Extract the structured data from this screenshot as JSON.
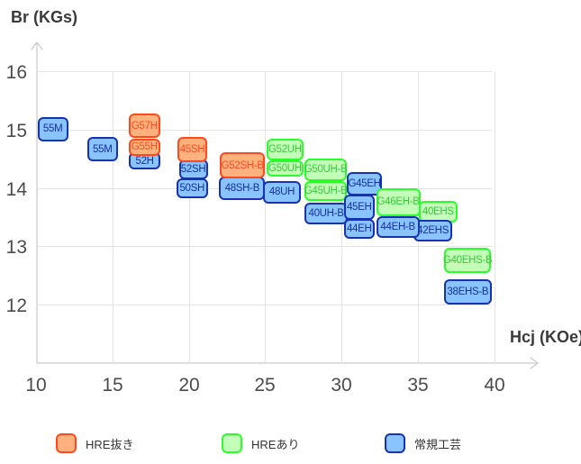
{
  "chart_data": {
    "type": "scatter",
    "subtype": "labeled-range-boxes",
    "title": "",
    "xlabel": "Hcj (KOe)",
    "ylabel": "Br (KGs)",
    "xlim": [
      10,
      42
    ],
    "ylim": [
      11,
      16.5
    ],
    "x_ticks": [
      10,
      15,
      20,
      25,
      30,
      35,
      40
    ],
    "y_ticks": [
      12,
      13,
      14,
      15,
      16
    ],
    "grid": true,
    "legend_position": "bottom",
    "series": [
      {
        "name": "HRE抜き",
        "fill": "#ffb27d",
        "border": "#ff4a21",
        "text": "#ff4a21"
      },
      {
        "name": "HREあり",
        "fill": "#c3ffb9",
        "border": "#2bff2b",
        "text": "#35cc35"
      },
      {
        "name": "常規工芸",
        "fill": "#8ac4ff",
        "border": "#1733b2",
        "text": "#15309f"
      }
    ],
    "items": [
      {
        "label": "55M",
        "group": "常規工芸",
        "hcj": [
          10.1,
          12.1
        ],
        "br": [
          14.8,
          15.22
        ]
      },
      {
        "label": "55M",
        "group": "常規工芸",
        "hcj": [
          13.35,
          15.35
        ],
        "br": [
          14.45,
          14.87
        ]
      },
      {
        "label": "52H",
        "group": "常規工芸",
        "hcj": [
          16.1,
          18.13
        ],
        "br": [
          14.31,
          14.61
        ]
      },
      {
        "label": "G55H",
        "group": "HRE抜き",
        "hcj": [
          16.05,
          18.15
        ],
        "br": [
          14.55,
          14.85
        ]
      },
      {
        "label": "G57H",
        "group": "HRE抜き",
        "hcj": [
          16.05,
          18.15
        ],
        "br": [
          14.85,
          15.27
        ]
      },
      {
        "label": "50SH",
        "group": "常規工芸",
        "hcj": [
          19.2,
          21.25
        ],
        "br": [
          13.82,
          14.17
        ]
      },
      {
        "label": "52SH",
        "group": "常規工芸",
        "hcj": [
          19.35,
          21.25
        ],
        "br": [
          14.14,
          14.49
        ]
      },
      {
        "label": "45SH",
        "group": "HRE抜き",
        "hcj": [
          19.25,
          21.22
        ],
        "br": [
          14.44,
          14.87
        ]
      },
      {
        "label": "48SH-B",
        "group": "常規工芸",
        "hcj": [
          22.0,
          25.0
        ],
        "br": [
          13.79,
          14.19
        ]
      },
      {
        "label": "G52SH-B",
        "group": "HRE抜き",
        "hcj": [
          22.05,
          25.0
        ],
        "br": [
          14.16,
          14.61
        ]
      },
      {
        "label": "48UH",
        "group": "常規工芸",
        "hcj": [
          24.87,
          27.35
        ],
        "br": [
          13.73,
          14.12
        ]
      },
      {
        "label": "G50UH",
        "group": "HREあり",
        "hcj": [
          25.1,
          27.52
        ],
        "br": [
          14.19,
          14.47
        ]
      },
      {
        "label": "G52UH",
        "group": "HREあり",
        "hcj": [
          25.1,
          27.52
        ],
        "br": [
          14.47,
          14.84
        ]
      },
      {
        "label": "G50UH-B",
        "group": "HREあり",
        "hcj": [
          27.57,
          30.38
        ],
        "br": [
          14.12,
          14.5
        ]
      },
      {
        "label": "G45UH-B",
        "group": "HREあり",
        "hcj": [
          27.57,
          30.38
        ],
        "br": [
          13.77,
          14.12
        ]
      },
      {
        "label": "40UH-B",
        "group": "常規工芸",
        "hcj": [
          27.6,
          30.4
        ],
        "br": [
          13.38,
          13.75
        ]
      },
      {
        "label": "45EH",
        "group": "常規工芸",
        "hcj": [
          30.16,
          32.17
        ],
        "br": [
          13.46,
          13.88
        ]
      },
      {
        "label": "44EH",
        "group": "常規工芸",
        "hcj": [
          30.16,
          32.17
        ],
        "br": [
          13.13,
          13.47
        ]
      },
      {
        "label": "G45EH",
        "group": "常規工芸",
        "hcj": [
          30.35,
          32.67
        ],
        "br": [
          13.87,
          14.28
        ]
      },
      {
        "label": "40EHS",
        "group": "HREあり",
        "hcj": [
          35.07,
          37.6
        ],
        "br": [
          13.41,
          13.78
        ]
      },
      {
        "label": "G46EH-B",
        "group": "HREあり",
        "hcj": [
          32.28,
          35.17
        ],
        "br": [
          13.52,
          14.0
        ]
      },
      {
        "label": "42EHS",
        "group": "常規工芸",
        "hcj": [
          34.72,
          37.27
        ],
        "br": [
          13.08,
          13.46
        ]
      },
      {
        "label": "44EH-B",
        "group": "常規工芸",
        "hcj": [
          32.28,
          35.12
        ],
        "br": [
          13.15,
          13.52
        ]
      },
      {
        "label": "G40EHS-B",
        "group": "HREあり",
        "hcj": [
          36.73,
          39.8
        ],
        "br": [
          12.54,
          12.97
        ]
      },
      {
        "label": "38EHS-B",
        "group": "常規工芸",
        "hcj": [
          36.73,
          39.83
        ],
        "br": [
          12.0,
          12.44
        ]
      }
    ]
  },
  "legend": {
    "items": [
      {
        "label": "HRE抜き"
      },
      {
        "label": "HREあり"
      },
      {
        "label": "常規工芸"
      }
    ]
  },
  "colors": {
    "grid": "#e4e4e4",
    "axis": "#c9c9c9",
    "tick_text": "#4b4b4b",
    "axis_title_text": "#3a3a3a"
  }
}
